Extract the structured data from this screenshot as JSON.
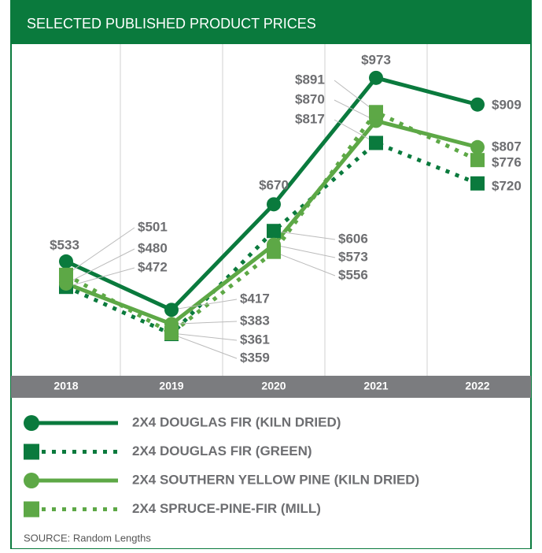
{
  "chart_data": {
    "type": "line",
    "title": "SELECTED PUBLISHED PRODUCT PRICES",
    "categories": [
      "2018",
      "2019",
      "2020",
      "2021",
      "2022"
    ],
    "ylim": [
      259,
      1052
    ],
    "series": [
      {
        "name": "2X4 DOUGLAS FIR (KILN DRIED)",
        "color": "#0a7a3d",
        "marker": "circle",
        "dash": "solid",
        "values": [
          533,
          417,
          670,
          973,
          909
        ],
        "value_labels": [
          "$533",
          "$417",
          "$670",
          "$973",
          "$909"
        ]
      },
      {
        "name": "2X4 DOUGLAS FIR (GREEN)",
        "color": "#0a7a3d",
        "marker": "square",
        "dash": "dotted",
        "values": [
          472,
          359,
          606,
          817,
          720
        ],
        "value_labels": [
          "$472",
          "$359",
          "$606",
          "$817",
          "$720"
        ]
      },
      {
        "name": "2X4 SOUTHERN YELLOW PINE (KILN DRIED)",
        "color": "#5da846",
        "marker": "circle",
        "dash": "solid",
        "values": [
          480,
          383,
          573,
          870,
          807
        ],
        "value_labels": [
          "$480",
          "$383",
          "$573",
          "$870",
          "$807"
        ]
      },
      {
        "name": "2X4 SPRUCE-PINE-FIR (MILL)",
        "color": "#5da846",
        "marker": "square",
        "dash": "dotted",
        "values": [
          501,
          361,
          556,
          891,
          776
        ],
        "value_labels": [
          "$501",
          "$361",
          "$556",
          "$891",
          "$776"
        ]
      }
    ],
    "source": "SOURCE: Random Lengths"
  }
}
